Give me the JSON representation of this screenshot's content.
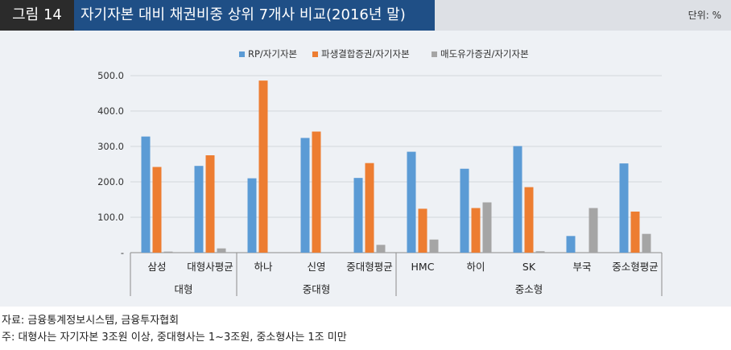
{
  "header": {
    "figure_label": "그림 14",
    "title": "자기자본 대비 채권비중 상위 7개사 비교(2016년 말)",
    "unit": "단위: %"
  },
  "colors": {
    "rp": "#5b9bd5",
    "deriv": "#ed7d31",
    "trading": "#a5a5a5",
    "title_bg": "#1f4f86",
    "label_bg": "#2b2b2b",
    "panel_bg": "#eef1f5"
  },
  "chart_data": {
    "type": "bar",
    "categories": [
      "삼성",
      "대형사평균",
      "하나",
      "신영",
      "중대형평균",
      "HMC",
      "하이",
      "SK",
      "부국",
      "중소형평균"
    ],
    "groups": [
      {
        "label": "대형",
        "members": [
          "삼성",
          "대형사평균"
        ]
      },
      {
        "label": "중대형",
        "members": [
          "하나",
          "신영",
          "중대형평균"
        ]
      },
      {
        "label": "중소형",
        "members": [
          "HMC",
          "하이",
          "SK",
          "부국",
          "중소형평균"
        ]
      }
    ],
    "series": [
      {
        "name": "RP/자기자본",
        "values": [
          328,
          245,
          210,
          324,
          211,
          285,
          237,
          301,
          47,
          252
        ]
      },
      {
        "name": "파생결합증권/자기자본",
        "values": [
          242,
          275,
          486,
          342,
          253,
          124,
          126,
          185,
          null,
          116
        ]
      },
      {
        "name": "매도유가증권/자기자본",
        "values": [
          3,
          12,
          null,
          null,
          22,
          37,
          142,
          4,
          126,
          53
        ]
      }
    ],
    "yticks": [
      "-",
      "100.0",
      "200.0",
      "300.0",
      "400.0",
      "500.0"
    ],
    "ylim": [
      0,
      500
    ],
    "grid": true,
    "legend": "top"
  },
  "footnotes": {
    "source": "자료: 금융통계정보시스템, 금융투자협회",
    "note": "주: 대형사는 자기자본 3조원 이상, 중대형사는 1~3조원, 중소형사는 1조 미만"
  }
}
